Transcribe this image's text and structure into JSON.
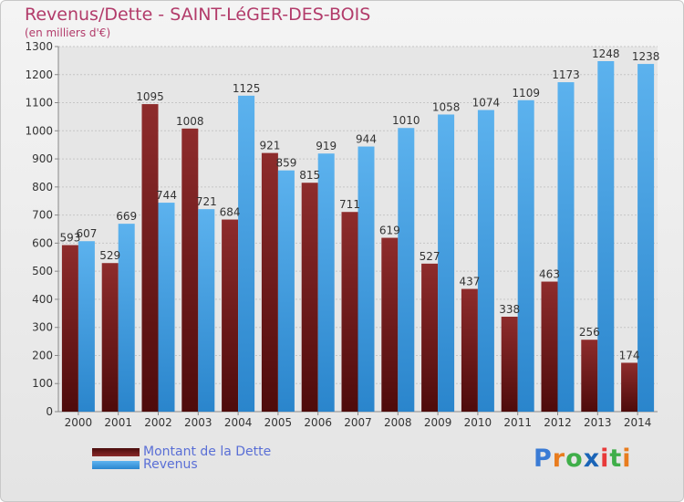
{
  "title": "Revenus/Dette - SAINT-LéGER-DES-BOIS",
  "subtitle": "(en milliers d'€)",
  "logo": {
    "text": "Proxiti",
    "letters": [
      "P",
      "r",
      "o",
      "x",
      "i",
      "t",
      "i"
    ],
    "colors": [
      "#3a7bd5",
      "#e87c1e",
      "#3fae49",
      "#1a64b7",
      "#e83a3a",
      "#3fae49",
      "#e87c1e"
    ]
  },
  "chart_data": {
    "type": "bar",
    "categories": [
      "2000",
      "2001",
      "2002",
      "2003",
      "2004",
      "2005",
      "2006",
      "2007",
      "2008",
      "2009",
      "2010",
      "2011",
      "2012",
      "2013",
      "2014"
    ],
    "series": [
      {
        "name": "Montant de la Dette",
        "color": "#7a1c1c",
        "values": [
          593,
          529,
          1095,
          1008,
          684,
          921,
          815,
          711,
          619,
          527,
          437,
          338,
          463,
          256,
          174
        ]
      },
      {
        "name": "Revenus",
        "color": "#3d9be0",
        "values": [
          607,
          669,
          744,
          721,
          1125,
          859,
          919,
          944,
          1010,
          1058,
          1074,
          1109,
          1173,
          1248,
          1238
        ]
      }
    ],
    "ylim": [
      0,
      1300
    ],
    "yticks": [
      0,
      100,
      200,
      300,
      400,
      500,
      600,
      700,
      800,
      900,
      1000,
      1100,
      1200,
      1300
    ],
    "grid": true,
    "legend": "bottom-left"
  }
}
